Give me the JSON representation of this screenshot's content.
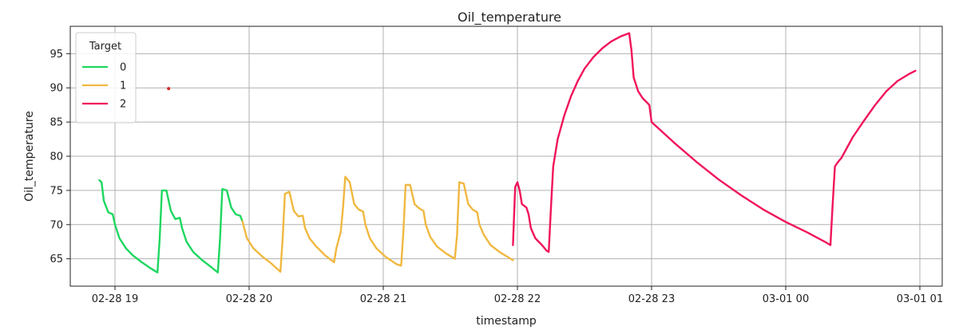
{
  "chart_data": {
    "type": "line",
    "title": "Oil_temperature",
    "xlabel": "timestamp",
    "ylabel": "Oil_temperature",
    "x_unit": "datetime",
    "xlim": [
      "2019-02-28 18:40",
      "2019-03-01 01:10"
    ],
    "ylim": [
      61,
      99
    ],
    "x_ticks": [
      "02-28 19",
      "02-28 20",
      "02-28 21",
      "02-28 22",
      "02-28 23",
      "03-01 00",
      "03-01 01"
    ],
    "x_tick_values": [
      "2019-02-28 19:00",
      "2019-02-28 20:00",
      "2019-02-28 21:00",
      "2019-02-28 22:00",
      "2019-02-28 23:00",
      "2019-03-01 00:00",
      "2019-03-01 01:00"
    ],
    "y_ticks": [
      65,
      70,
      75,
      80,
      85,
      90,
      95
    ],
    "grid": true,
    "legend": {
      "title": "Target",
      "position": "upper-left"
    },
    "series": [
      {
        "name": "0",
        "color": "#1ed760",
        "points": [
          [
            "2019-02-28 18:53:00",
            76.5
          ],
          [
            "2019-02-28 18:54:00",
            76.2
          ],
          [
            "2019-02-28 18:55:00",
            73.5
          ],
          [
            "2019-02-28 18:57:00",
            71.8
          ],
          [
            "2019-02-28 18:59:00",
            71.5
          ],
          [
            "2019-02-28 19:00:00",
            70.0
          ],
          [
            "2019-02-28 19:02:00",
            68.0
          ],
          [
            "2019-02-28 19:05:00",
            66.5
          ],
          [
            "2019-02-28 19:08:00",
            65.5
          ],
          [
            "2019-02-28 19:12:00",
            64.5
          ],
          [
            "2019-02-28 19:16:00",
            63.6
          ],
          [
            "2019-02-28 19:19:00",
            63.0
          ],
          [
            "2019-02-28 19:20:00",
            68.0
          ],
          [
            "2019-02-28 19:21:00",
            75.0
          ],
          [
            "2019-02-28 19:23:00",
            75.0
          ],
          [
            "2019-02-28 19:25:00",
            72.0
          ],
          [
            "2019-02-28 19:27:00",
            70.8
          ],
          [
            "2019-02-28 19:29:00",
            71.0
          ],
          [
            "2019-02-28 19:30:00",
            69.5
          ],
          [
            "2019-02-28 19:32:00",
            67.5
          ],
          [
            "2019-02-28 19:35:00",
            66.0
          ],
          [
            "2019-02-28 19:39:00",
            64.8
          ],
          [
            "2019-02-28 19:43:00",
            63.8
          ],
          [
            "2019-02-28 19:46:00",
            63.0
          ],
          [
            "2019-02-28 19:47:00",
            68.0
          ],
          [
            "2019-02-28 19:48:00",
            75.2
          ],
          [
            "2019-02-28 19:50:00",
            75.0
          ],
          [
            "2019-02-28 19:52:00",
            72.5
          ],
          [
            "2019-02-28 19:54:00",
            71.5
          ],
          [
            "2019-02-28 19:56:00",
            71.3
          ],
          [
            "2019-02-28 19:57:00",
            70.5
          ]
        ]
      },
      {
        "name": "1",
        "color": "#f0b840",
        "points": [
          [
            "2019-02-28 19:57:00",
            70.5
          ],
          [
            "2019-02-28 19:59:00",
            68.0
          ],
          [
            "2019-02-28 20:02:00",
            66.5
          ],
          [
            "2019-02-28 20:06:00",
            65.3
          ],
          [
            "2019-02-28 20:10:00",
            64.3
          ],
          [
            "2019-02-28 20:14:00",
            63.1
          ],
          [
            "2019-02-28 20:15:00",
            68.0
          ],
          [
            "2019-02-28 20:16:00",
            74.5
          ],
          [
            "2019-02-28 20:18:00",
            74.8
          ],
          [
            "2019-02-28 20:20:00",
            72.0
          ],
          [
            "2019-02-28 20:22:00",
            71.2
          ],
          [
            "2019-02-28 20:24:00",
            71.3
          ],
          [
            "2019-02-28 20:25:00",
            69.5
          ],
          [
            "2019-02-28 20:27:00",
            68.0
          ],
          [
            "2019-02-28 20:30:00",
            66.8
          ],
          [
            "2019-02-28 20:34:00",
            65.5
          ],
          [
            "2019-02-28 20:38:00",
            64.5
          ],
          [
            "2019-02-28 20:39:00",
            66.5
          ],
          [
            "2019-02-28 20:41:00",
            69.0
          ],
          [
            "2019-02-28 20:42:00",
            72.5
          ],
          [
            "2019-02-28 20:43:00",
            77.0
          ],
          [
            "2019-02-28 20:45:00",
            76.2
          ],
          [
            "2019-02-28 20:47:00",
            73.0
          ],
          [
            "2019-02-28 20:49:00",
            72.2
          ],
          [
            "2019-02-28 20:51:00",
            71.9
          ],
          [
            "2019-02-28 20:52:00",
            70.0
          ],
          [
            "2019-02-28 20:54:00",
            68.0
          ],
          [
            "2019-02-28 20:57:00",
            66.5
          ],
          [
            "2019-02-28 21:01:00",
            65.3
          ],
          [
            "2019-02-28 21:06:00",
            64.2
          ],
          [
            "2019-02-28 21:08:00",
            64.0
          ],
          [
            "2019-02-28 21:09:00",
            69.0
          ],
          [
            "2019-02-28 21:10:00",
            75.8
          ],
          [
            "2019-02-28 21:12:00",
            75.8
          ],
          [
            "2019-02-28 21:14:00",
            73.0
          ],
          [
            "2019-02-28 21:16:00",
            72.4
          ],
          [
            "2019-02-28 21:18:00",
            72.0
          ],
          [
            "2019-02-28 21:19:00",
            70.0
          ],
          [
            "2019-02-28 21:21:00",
            68.2
          ],
          [
            "2019-02-28 21:24:00",
            66.8
          ],
          [
            "2019-02-28 21:28:00",
            65.8
          ],
          [
            "2019-02-28 21:32:00",
            65.0
          ],
          [
            "2019-02-28 21:33:00",
            68.5
          ],
          [
            "2019-02-28 21:34:00",
            76.2
          ],
          [
            "2019-02-28 21:36:00",
            76.0
          ],
          [
            "2019-02-28 21:38:00",
            73.0
          ],
          [
            "2019-02-28 21:40:00",
            72.2
          ],
          [
            "2019-02-28 21:42:00",
            71.8
          ],
          [
            "2019-02-28 21:43:00",
            70.0
          ],
          [
            "2019-02-28 21:45:00",
            68.5
          ],
          [
            "2019-02-28 21:48:00",
            67.0
          ],
          [
            "2019-02-28 21:52:00",
            66.0
          ],
          [
            "2019-02-28 21:56:00",
            65.2
          ],
          [
            "2019-02-28 21:58:00",
            64.8
          ]
        ]
      },
      {
        "name": "2",
        "color": "#f0145a",
        "points": [
          [
            "2019-02-28 21:58:00",
            67.0
          ],
          [
            "2019-02-28 21:59:00",
            75.5
          ],
          [
            "2019-02-28 22:00:00",
            76.2
          ],
          [
            "2019-02-28 22:01:00",
            75.0
          ],
          [
            "2019-02-28 22:02:00",
            73.0
          ],
          [
            "2019-02-28 22:04:00",
            72.5
          ],
          [
            "2019-02-28 22:05:00",
            71.5
          ],
          [
            "2019-02-28 22:06:00",
            69.5
          ],
          [
            "2019-02-28 22:08:00",
            68.0
          ],
          [
            "2019-02-28 22:11:00",
            67.0
          ],
          [
            "2019-02-28 22:13:00",
            66.2
          ],
          [
            "2019-02-28 22:14:00",
            66.0
          ],
          [
            "2019-02-28 22:15:00",
            72.5
          ],
          [
            "2019-02-28 22:16:00",
            78.5
          ],
          [
            "2019-02-28 22:18:00",
            82.5
          ],
          [
            "2019-02-28 22:21:00",
            86.0
          ],
          [
            "2019-02-28 22:24:00",
            88.8
          ],
          [
            "2019-02-28 22:27:00",
            91.0
          ],
          [
            "2019-02-28 22:30:00",
            92.8
          ],
          [
            "2019-02-28 22:34:00",
            94.5
          ],
          [
            "2019-02-28 22:38:00",
            95.8
          ],
          [
            "2019-02-28 22:42:00",
            96.8
          ],
          [
            "2019-02-28 22:46:00",
            97.5
          ],
          [
            "2019-02-28 22:50:00",
            98.0
          ],
          [
            "2019-02-28 22:51:00",
            95.5
          ],
          [
            "2019-02-28 22:52:00",
            91.5
          ],
          [
            "2019-02-28 22:54:00",
            89.5
          ],
          [
            "2019-02-28 22:56:00",
            88.5
          ],
          [
            "2019-02-28 22:59:00",
            87.5
          ],
          [
            "2019-02-28 23:00:00",
            85.0
          ],
          [
            "2019-02-28 23:10:00",
            82.0
          ],
          [
            "2019-02-28 23:20:00",
            79.2
          ],
          [
            "2019-02-28 23:30:00",
            76.6
          ],
          [
            "2019-02-28 23:40:00",
            74.3
          ],
          [
            "2019-02-28 23:50:00",
            72.2
          ],
          [
            "2019-03-01 00:00:00",
            70.4
          ],
          [
            "2019-03-01 00:10:00",
            68.8
          ],
          [
            "2019-03-01 00:18:00",
            67.4
          ],
          [
            "2019-03-01 00:20:00",
            67.0
          ],
          [
            "2019-03-01 00:21:00",
            73.0
          ],
          [
            "2019-03-01 00:22:00",
            78.5
          ],
          [
            "2019-03-01 00:23:00",
            79.0
          ],
          [
            "2019-03-01 00:25:00",
            79.8
          ],
          [
            "2019-03-01 00:27:00",
            81.0
          ],
          [
            "2019-03-01 00:30:00",
            82.8
          ],
          [
            "2019-03-01 00:35:00",
            85.2
          ],
          [
            "2019-03-01 00:40:00",
            87.5
          ],
          [
            "2019-03-01 00:45:00",
            89.5
          ],
          [
            "2019-03-01 00:50:00",
            91.0
          ],
          [
            "2019-03-01 00:55:00",
            92.0
          ],
          [
            "2019-03-01 00:58:00",
            92.5
          ]
        ]
      }
    ],
    "extra_points": [
      {
        "x": "2019-02-28 19:24:00",
        "y": 89.9,
        "color": "#d62728"
      }
    ]
  }
}
